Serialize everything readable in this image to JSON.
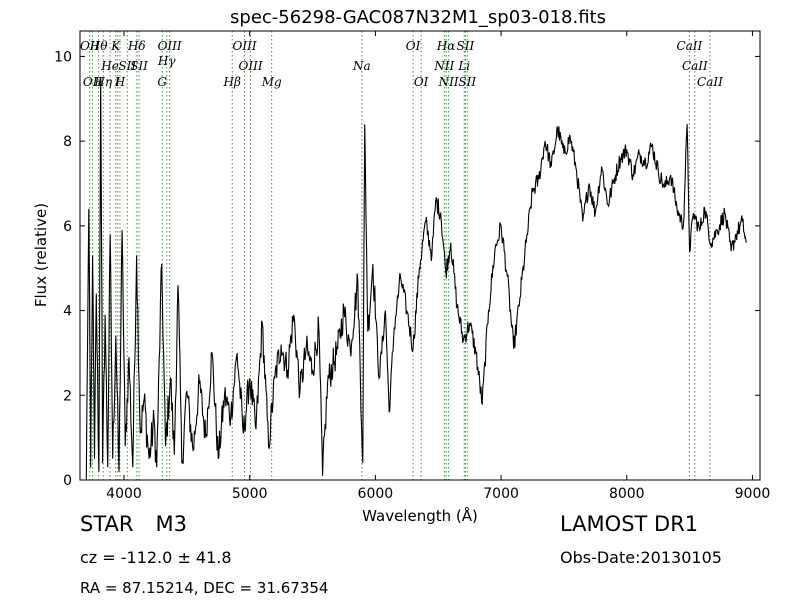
{
  "chart_data": {
    "type": "line",
    "title": "spec-56298-GAC087N32M1_sp03-018.fits",
    "xlabel": "Wavelength (Å)",
    "ylabel": "Flux (relative)",
    "xlim": [
      3650,
      9060
    ],
    "ylim": [
      0,
      10.6
    ],
    "xticks": [
      4000,
      5000,
      6000,
      7000,
      8000,
      9000
    ],
    "yticks": [
      0,
      2,
      4,
      6,
      8,
      10
    ],
    "grid": false,
    "series_color": "#000000",
    "line_marker_color": "#2ca02c",
    "spectrum_anchors": [
      [
        3700,
        0.0
      ],
      [
        3720,
        6.4
      ],
      [
        3735,
        0.3
      ],
      [
        3750,
        5.3
      ],
      [
        3765,
        0.5
      ],
      [
        3780,
        4.4
      ],
      [
        3800,
        0.2
      ],
      [
        3815,
        9.5
      ],
      [
        3830,
        0.4
      ],
      [
        3850,
        3.9
      ],
      [
        3870,
        0.3
      ],
      [
        3890,
        5.8
      ],
      [
        3910,
        0.5
      ],
      [
        3935,
        3.4
      ],
      [
        3960,
        0.2
      ],
      [
        3985,
        5.9
      ],
      [
        4010,
        0.8
      ],
      [
        4040,
        2.9
      ],
      [
        4070,
        0.3
      ],
      [
        4100,
        5.3
      ],
      [
        4130,
        1.1
      ],
      [
        4160,
        1.9
      ],
      [
        4200,
        0.5
      ],
      [
        4240,
        1.4
      ],
      [
        4260,
        0.3
      ],
      [
        4300,
        5.1
      ],
      [
        4330,
        0.8
      ],
      [
        4370,
        2.4
      ],
      [
        4400,
        0.6
      ],
      [
        4430,
        4.6
      ],
      [
        4460,
        0.4
      ],
      [
        4500,
        2.1
      ],
      [
        4550,
        0.7
      ],
      [
        4600,
        2.3
      ],
      [
        4650,
        1.0
      ],
      [
        4700,
        3.0
      ],
      [
        4750,
        0.5
      ],
      [
        4800,
        2.0
      ],
      [
        4850,
        1.5
      ],
      [
        4900,
        3.0
      ],
      [
        4950,
        1.1
      ],
      [
        5000,
        2.4
      ],
      [
        5050,
        1.2
      ],
      [
        5100,
        3.7
      ],
      [
        5150,
        0.8
      ],
      [
        5200,
        2.4
      ],
      [
        5250,
        3.2
      ],
      [
        5300,
        2.6
      ],
      [
        5350,
        3.9
      ],
      [
        5400,
        2.1
      ],
      [
        5450,
        3.1
      ],
      [
        5500,
        2.6
      ],
      [
        5550,
        3.6
      ],
      [
        5580,
        0.1
      ],
      [
        5620,
        2.3
      ],
      [
        5700,
        3.1
      ],
      [
        5750,
        4.0
      ],
      [
        5800,
        3.1
      ],
      [
        5860,
        4.7
      ],
      [
        5900,
        0.4
      ],
      [
        5915,
        8.4
      ],
      [
        5940,
        3.5
      ],
      [
        5980,
        5.1
      ],
      [
        6030,
        2.4
      ],
      [
        6080,
        4.0
      ],
      [
        6110,
        1.6
      ],
      [
        6150,
        3.6
      ],
      [
        6200,
        4.8
      ],
      [
        6250,
        4.0
      ],
      [
        6300,
        3.1
      ],
      [
        6350,
        5.0
      ],
      [
        6400,
        6.1
      ],
      [
        6450,
        5.3
      ],
      [
        6480,
        6.6
      ],
      [
        6520,
        6.3
      ],
      [
        6560,
        4.9
      ],
      [
        6600,
        5.6
      ],
      [
        6650,
        4.1
      ],
      [
        6700,
        3.3
      ],
      [
        6750,
        3.7
      ],
      [
        6800,
        3.0
      ],
      [
        6850,
        1.8
      ],
      [
        6900,
        4.0
      ],
      [
        6950,
        5.4
      ],
      [
        7000,
        6.0
      ],
      [
        7050,
        4.8
      ],
      [
        7100,
        3.1
      ],
      [
        7150,
        4.3
      ],
      [
        7200,
        5.6
      ],
      [
        7250,
        6.8
      ],
      [
        7300,
        7.1
      ],
      [
        7350,
        8.0
      ],
      [
        7400,
        7.4
      ],
      [
        7450,
        8.3
      ],
      [
        7500,
        7.7
      ],
      [
        7550,
        8.1
      ],
      [
        7600,
        7.3
      ],
      [
        7650,
        6.1
      ],
      [
        7700,
        7.0
      ],
      [
        7750,
        6.3
      ],
      [
        7800,
        7.4
      ],
      [
        7850,
        6.5
      ],
      [
        7900,
        7.1
      ],
      [
        7950,
        7.6
      ],
      [
        8000,
        7.8
      ],
      [
        8050,
        7.2
      ],
      [
        8100,
        7.7
      ],
      [
        8150,
        7.5
      ],
      [
        8200,
        7.9
      ],
      [
        8250,
        7.3
      ],
      [
        8300,
        6.9
      ],
      [
        8350,
        7.2
      ],
      [
        8400,
        6.4
      ],
      [
        8450,
        6.0
      ],
      [
        8480,
        8.4
      ],
      [
        8500,
        5.4
      ],
      [
        8530,
        6.3
      ],
      [
        8580,
        5.9
      ],
      [
        8620,
        6.4
      ],
      [
        8670,
        5.6
      ],
      [
        8720,
        5.9
      ],
      [
        8780,
        6.3
      ],
      [
        8830,
        5.4
      ],
      [
        8870,
        5.8
      ],
      [
        8920,
        6.1
      ],
      [
        8950,
        5.6
      ]
    ],
    "line_markers": [
      {
        "wl": 3727,
        "label": "OII",
        "row": "top"
      },
      {
        "wl": 3750,
        "label": "OII",
        "row": "low"
      },
      {
        "wl": 3798,
        "label": "Hθ",
        "row": "top"
      },
      {
        "wl": 3835,
        "label": "Hη",
        "row": "low2"
      },
      {
        "wl": 3889,
        "label": "He",
        "row": "mid"
      },
      {
        "wl": 3934,
        "label": "K",
        "row": "top"
      },
      {
        "wl": 3950,
        "label": "I",
        "row": "low"
      },
      {
        "wl": 3968,
        "label": "H",
        "row": "low2"
      },
      {
        "wl": 4026,
        "label": "SII",
        "row": "mid"
      },
      {
        "wl": 4102,
        "label": "Hδ",
        "row": "top"
      },
      {
        "wl": 4120,
        "label": "SII",
        "row": "mid"
      },
      {
        "wl": 4304,
        "label": "G",
        "row": "low2"
      },
      {
        "wl": 4340,
        "label": "Hγ",
        "row": "mid2"
      },
      {
        "wl": 4363,
        "label": "OIII",
        "row": "top"
      },
      {
        "wl": 4861,
        "label": "Hβ",
        "row": "low"
      },
      {
        "wl": 4959,
        "label": "OIII",
        "row": "top"
      },
      {
        "wl": 5007,
        "label": "OIII",
        "row": "mid"
      },
      {
        "wl": 5175,
        "label": "Mg",
        "row": "low"
      },
      {
        "wl": 5892,
        "label": "Na",
        "row": "mid"
      },
      {
        "wl": 6300,
        "label": "OI",
        "row": "top"
      },
      {
        "wl": 6364,
        "label": "OI",
        "row": "low"
      },
      {
        "wl": 6548,
        "label": "NII",
        "row": "mid"
      },
      {
        "wl": 6563,
        "label": "Hα",
        "row": "top"
      },
      {
        "wl": 6583,
        "label": "NII",
        "row": "low"
      },
      {
        "wl": 6707,
        "label": "Li",
        "row": "mid"
      },
      {
        "wl": 6716,
        "label": "SII",
        "row": "top"
      },
      {
        "wl": 6731,
        "label": "SII",
        "row": "low"
      },
      {
        "wl": 8498,
        "label": "CaII",
        "row": "top"
      },
      {
        "wl": 8542,
        "label": "CaII",
        "row": "mid"
      },
      {
        "wl": 8662,
        "label": "CaII",
        "row": "low"
      }
    ]
  },
  "footer": {
    "class_label": "STAR",
    "subclass_label": "M3",
    "survey_label": "LAMOST DR1",
    "cz_text": "cz = -112.0  ± 41.8",
    "obs_date_text": "Obs-Date:20130105",
    "radec_text": "RA = 87.15214, DEC = 31.67354"
  }
}
